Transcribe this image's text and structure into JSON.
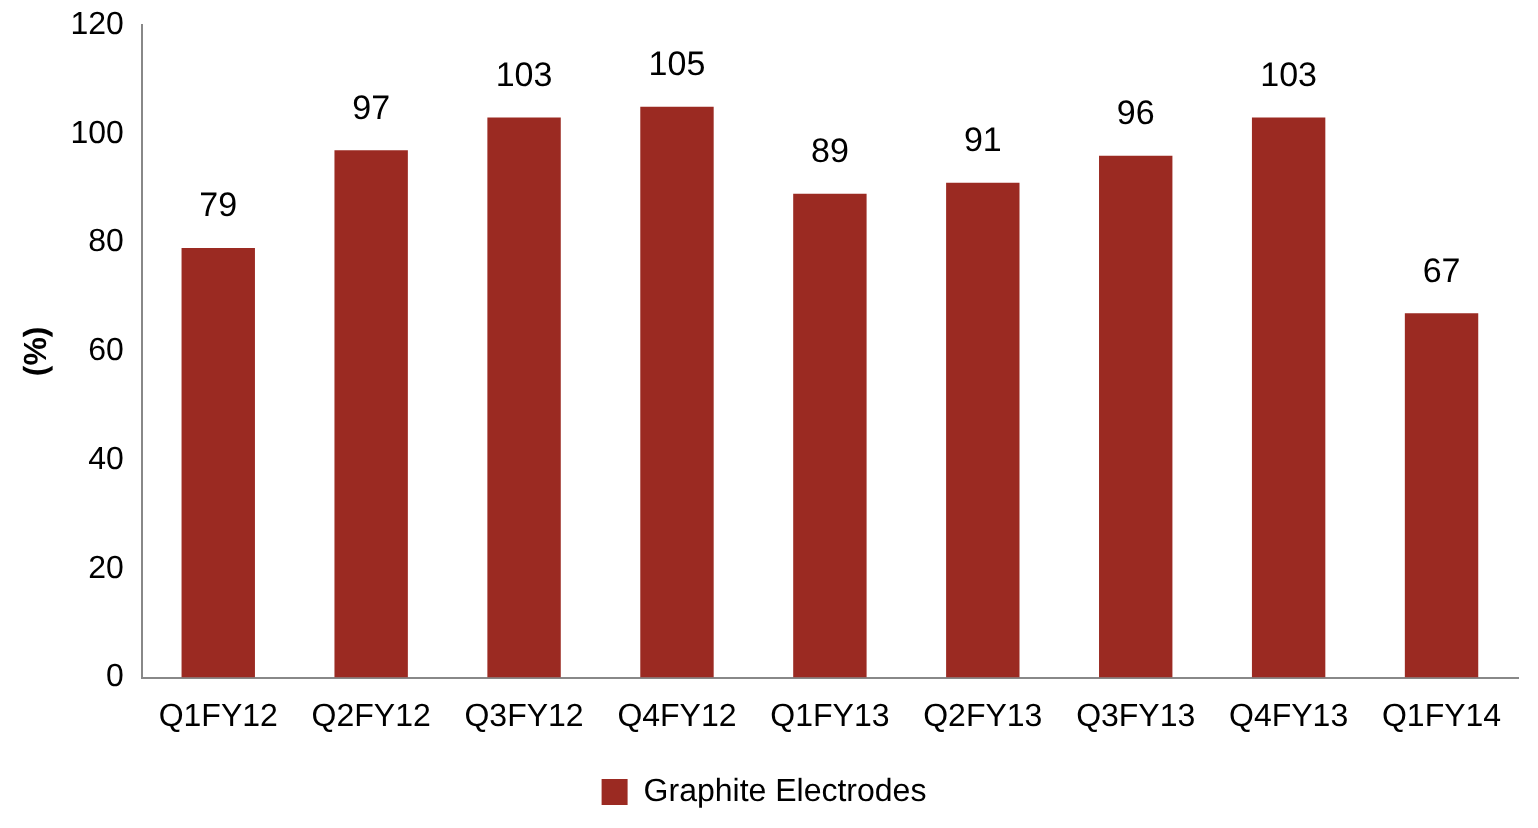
{
  "chart_data": {
    "type": "bar",
    "ylabel": "(%)",
    "categories": [
      "Q1FY12",
      "Q2FY12",
      "Q3FY12",
      "Q4FY12",
      "Q1FY13",
      "Q2FY13",
      "Q3FY13",
      "Q4FY13",
      "Q1FY14"
    ],
    "series": [
      {
        "name": "Graphite Electrodes",
        "color": "#9b2a22",
        "values": [
          79,
          97,
          103,
          105,
          89,
          91,
          96,
          103,
          67
        ]
      }
    ],
    "ylim": [
      0,
      120
    ],
    "yticks": [
      0,
      20,
      40,
      60,
      80,
      100,
      120
    ],
    "grid": false,
    "legend": "bottom",
    "data_labels": true
  }
}
